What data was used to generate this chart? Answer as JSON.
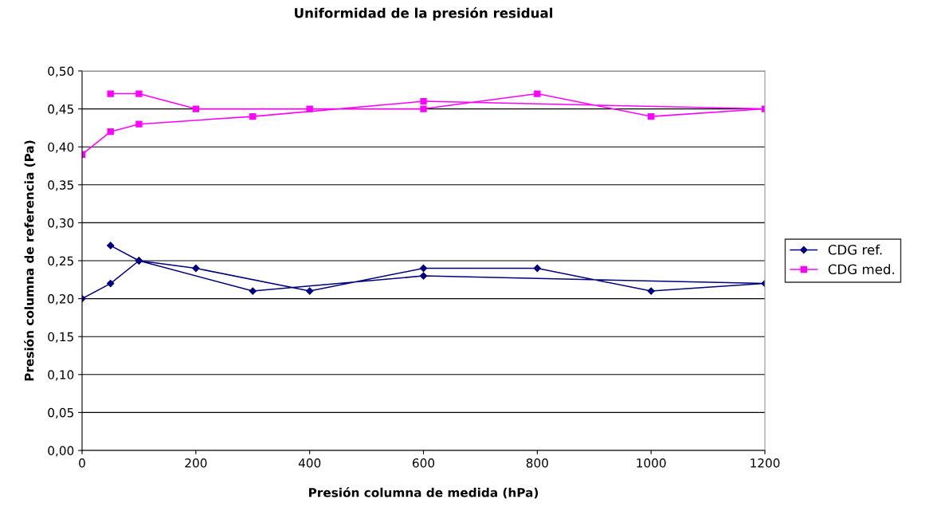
{
  "chart_data": {
    "type": "line",
    "title": "Uniformidad de la presión residual",
    "xlabel": "Presión columna de medida (hPa)",
    "ylabel": "Presión columna de referencia (Pa)",
    "series": [
      {
        "name": "CDG ref.",
        "color": "#000080",
        "marker": "diamond",
        "x": [
          0,
          50,
          100,
          300,
          600,
          1200,
          1000,
          800,
          600,
          400,
          200,
          100,
          50
        ],
        "values": [
          0.2,
          0.22,
          0.25,
          0.21,
          0.23,
          0.22,
          0.21,
          0.24,
          0.24,
          0.21,
          0.24,
          0.25,
          0.27
        ]
      },
      {
        "name": "CDG med.",
        "color": "#ff00ff",
        "marker": "square",
        "x": [
          0,
          50,
          100,
          300,
          600,
          1200,
          1000,
          800,
          600,
          400,
          200,
          100,
          50
        ],
        "values": [
          0.39,
          0.42,
          0.43,
          0.44,
          0.46,
          0.45,
          0.44,
          0.47,
          0.45,
          0.45,
          0.45,
          0.47,
          0.47
        ]
      }
    ],
    "xlim": [
      0,
      1200
    ],
    "xticks": [
      0,
      200,
      400,
      600,
      800,
      1000,
      1200
    ],
    "ylim": [
      0,
      0.5
    ],
    "yticks": [
      {
        "value": 0,
        "label": "0,00"
      },
      {
        "value": 0.05,
        "label": "0,05"
      },
      {
        "value": 0.1,
        "label": "0,10"
      },
      {
        "value": 0.15,
        "label": "0,15"
      },
      {
        "value": 0.2,
        "label": "0,20"
      },
      {
        "value": 0.25,
        "label": "0,25"
      },
      {
        "value": 0.3,
        "label": "0,30"
      },
      {
        "value": 0.35,
        "label": "0,35"
      },
      {
        "value": 0.4,
        "label": "0,40"
      },
      {
        "value": 0.45,
        "label": "0,45"
      },
      {
        "value": 0.5,
        "label": "0,50"
      }
    ],
    "grid": "y",
    "legend": "right",
    "line_style": "solid"
  }
}
